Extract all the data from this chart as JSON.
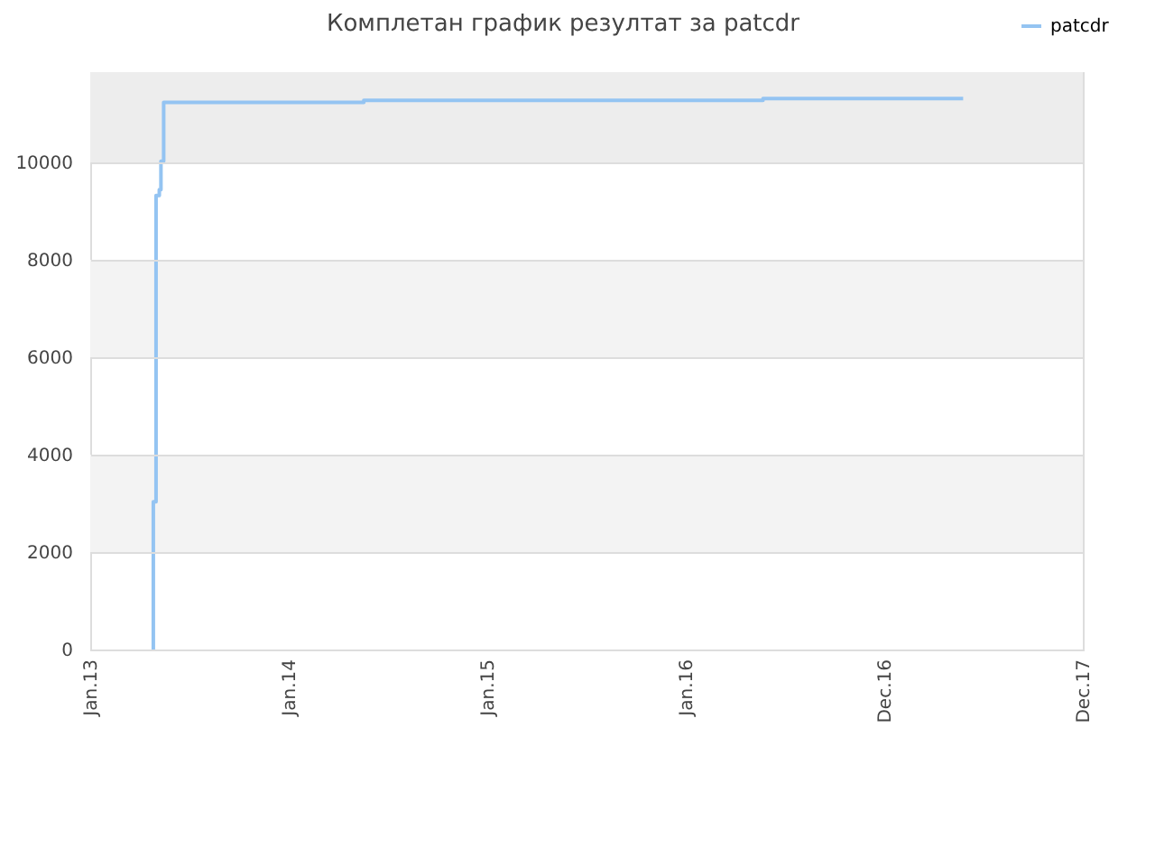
{
  "chart_data": {
    "type": "step",
    "title": "Комплетан график резултат за patcdr",
    "x": [
      "2013-04-26",
      "2013-04-27",
      "2013-05-02",
      "2013-05-08",
      "2013-05-11",
      "2013-05-16",
      "2014-05-19",
      "2016-05-22",
      "2017-05-25"
    ],
    "series": [
      {
        "name": "patcdr",
        "color": "#94c4f2",
        "values": [
          0,
          3030,
          9320,
          9440,
          10020,
          11230,
          11270,
          11310,
          11310
        ]
      }
    ],
    "xlim": [
      "2013-01-01",
      "2017-12-31"
    ],
    "xticks": [
      {
        "value": "2013-01-01",
        "label": "Jan.13"
      },
      {
        "value": "2014-01-01",
        "label": "Jan.14"
      },
      {
        "value": "2015-01-01",
        "label": "Jan.15"
      },
      {
        "value": "2016-01-01",
        "label": "Jan.16"
      },
      {
        "value": "2016-12-31",
        "label": "Dec.16"
      },
      {
        "value": "2017-12-31",
        "label": "Dec.17"
      }
    ],
    "ylim": [
      0,
      11850
    ],
    "yticks": [
      0,
      2000,
      4000,
      6000,
      8000,
      10000
    ],
    "grid": "y",
    "legend": "top right",
    "line_style": "solid",
    "bands": [
      {
        "axis": "y",
        "from": 2000,
        "to": 4000,
        "color": "#f3f3f3"
      },
      {
        "axis": "y",
        "from": 6000,
        "to": 8000,
        "color": "#f3f3f3"
      },
      {
        "axis": "y",
        "from": 10000,
        "to": 11850,
        "color": "#ededed"
      }
    ]
  }
}
